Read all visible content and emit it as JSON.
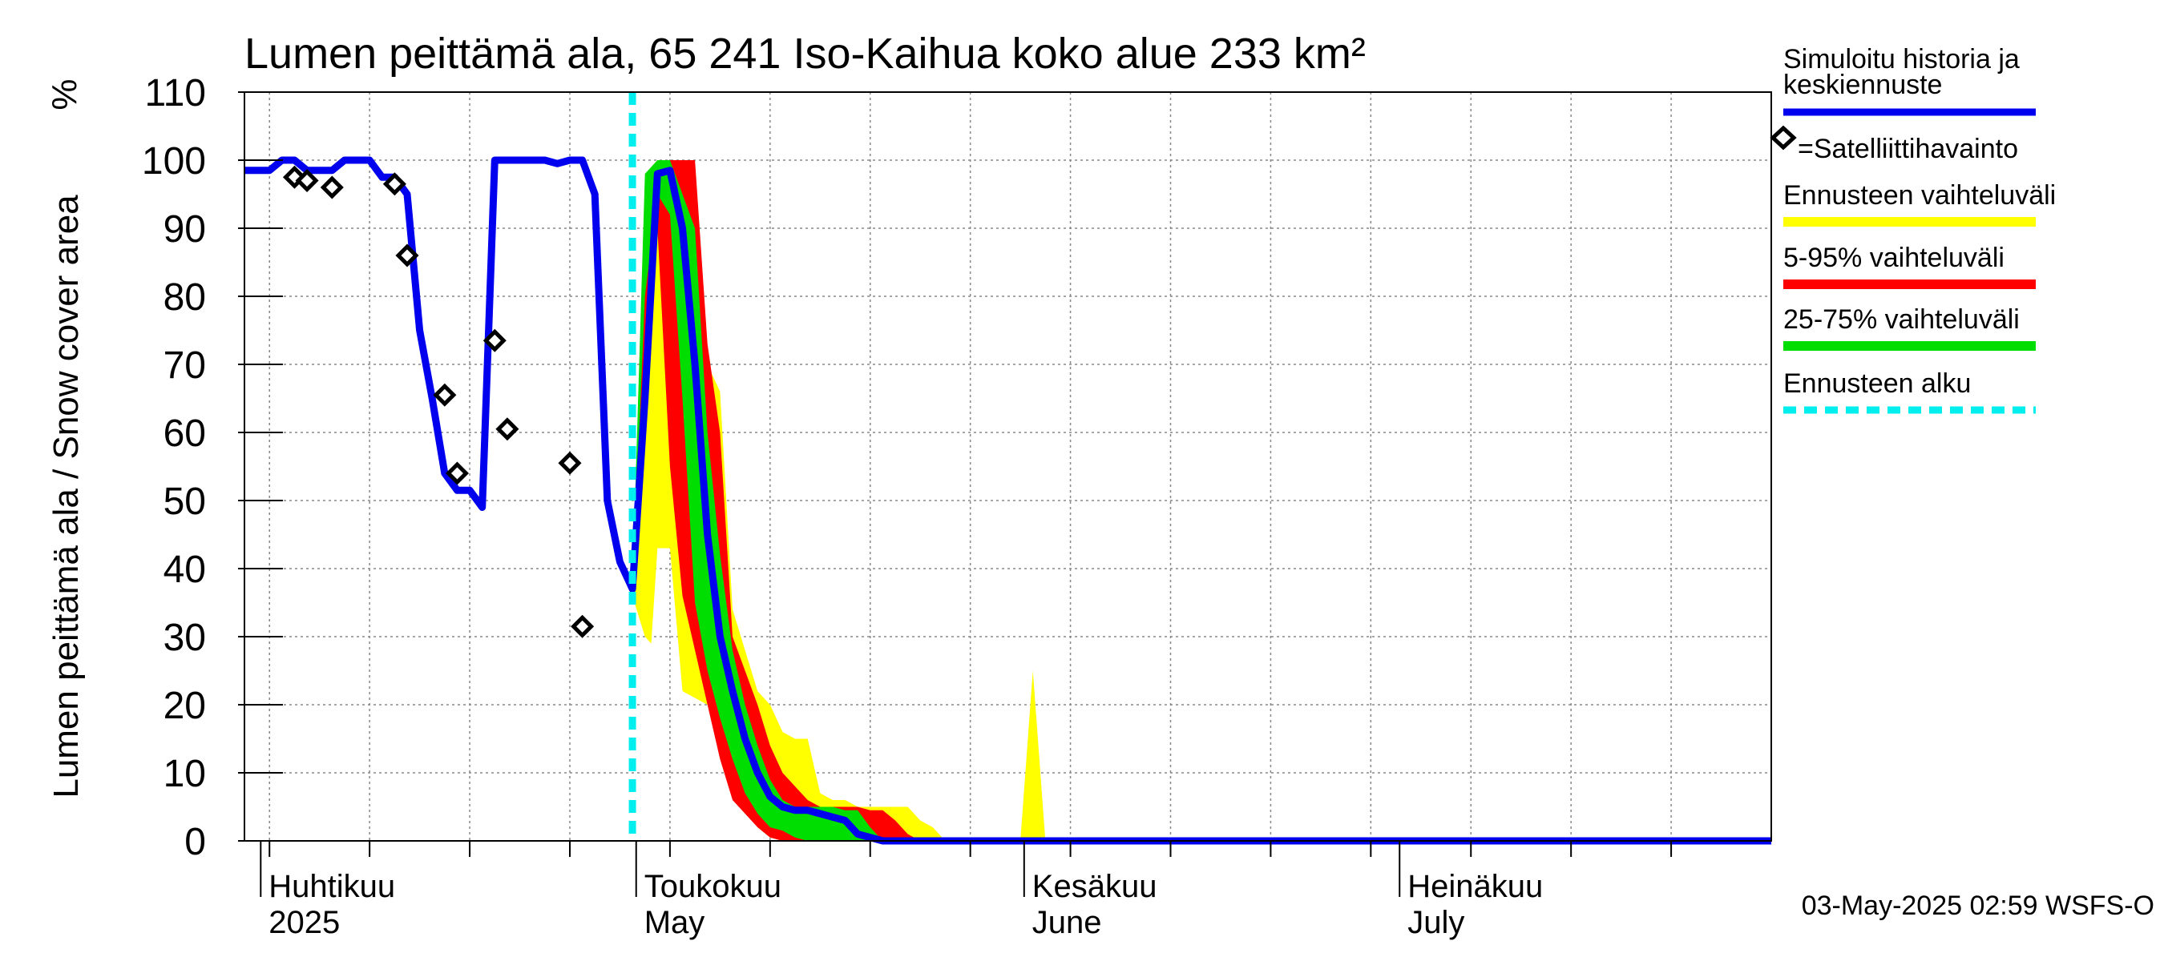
{
  "chart_data": {
    "type": "area",
    "title": "Lumen peittämä ala, 65 241 Iso-Kaihua koko alue 233 km²",
    "ylabel": "Lumen peittämä ala / Snow cover area",
    "yunit": "%",
    "ylim": [
      0,
      110
    ],
    "yticks": [
      0,
      10,
      20,
      30,
      40,
      50,
      60,
      70,
      80,
      90,
      100,
      110
    ],
    "x_unit": "day of year 2025",
    "xlim": [
      89,
      211
    ],
    "grid": true,
    "month_labels": [
      {
        "fi": "Huhtikuu",
        "en": "2025",
        "day": 91
      },
      {
        "fi": "Toukokuu",
        "en": "May",
        "day": 121
      },
      {
        "fi": "Kesäkuu",
        "en": "June",
        "day": 152
      },
      {
        "fi": "Heinäkuu",
        "en": "July",
        "day": 182
      }
    ],
    "forecast_start_day": 120,
    "legend": {
      "placement": "right",
      "entries": [
        {
          "label": "Simuloitu historia ja keskiennuste",
          "color": "#0000ee",
          "style": "line"
        },
        {
          "label": "=Satelliittihavainto",
          "color": "#000000",
          "style": "diamond"
        },
        {
          "label": "Ennusteen vaihteluväli",
          "color": "#ffff00",
          "style": "band"
        },
        {
          "label": "5-95% vaihteluväli",
          "color": "#ff0000",
          "style": "band"
        },
        {
          "label": "25-75% vaihteluväli",
          "color": "#00dd00",
          "style": "band"
        },
        {
          "label": "Ennusteen alku",
          "color": "#00eeee",
          "style": "dashed"
        }
      ]
    },
    "series": [
      {
        "name": "Simuloitu historia ja keskiennuste",
        "color": "#0000ee",
        "x": [
          89,
          91,
          92,
          93,
          94,
          96,
          97,
          98,
          99,
          100,
          101,
          102,
          103,
          104,
          105,
          106,
          107,
          108,
          109,
          110,
          111,
          112,
          113,
          114,
          115,
          116,
          117,
          118,
          119,
          120,
          121,
          122,
          123,
          124,
          125,
          126,
          127,
          128,
          129,
          130,
          131,
          132,
          133,
          134,
          135,
          136,
          137,
          138,
          140,
          211
        ],
        "y": [
          98.5,
          98.5,
          100,
          100,
          98.5,
          98.5,
          100,
          100,
          100,
          97.5,
          97.5,
          95,
          75,
          65,
          54,
          51.5,
          51.5,
          49,
          100,
          100,
          100,
          100,
          100,
          99.5,
          100,
          100,
          95,
          50,
          41,
          37,
          65,
          98,
          98.5,
          90,
          70,
          45,
          30,
          22,
          15,
          10,
          6.5,
          5,
          4.5,
          4.5,
          4,
          3.5,
          3,
          1,
          0,
          0
        ]
      },
      {
        "name": "Satelliittihavainto",
        "color": "#000000",
        "x": [
          93,
          94,
          96,
          101,
          102,
          105,
          106,
          109,
          110,
          115,
          116
        ],
        "y": [
          97.5,
          97,
          96,
          96.5,
          86,
          65.5,
          54,
          73.5,
          60.5,
          55.5,
          31.5
        ]
      },
      {
        "name": "Ennusteen vaihteluväli",
        "color": "#ffff00",
        "x": [
          120,
          121,
          121.5,
          122,
          123,
          124,
          125,
          126,
          127,
          128,
          129,
          130,
          131,
          132,
          133,
          134,
          135,
          136,
          137,
          138,
          139,
          140,
          141,
          142,
          143,
          144,
          145,
          146,
          150,
          151,
          152,
          153,
          154,
          155,
          211
        ],
        "upper": [
          40,
          90,
          99,
          100,
          100,
          100,
          95,
          70,
          66,
          34,
          28,
          22,
          20,
          16,
          15,
          15,
          7,
          6,
          6,
          5,
          5,
          5,
          5,
          5,
          3,
          2,
          0,
          0,
          0,
          0,
          25,
          0,
          0,
          0,
          0
        ],
        "lower": [
          36,
          30,
          29,
          43,
          43,
          22,
          21,
          20,
          15,
          11,
          6,
          2,
          0.5,
          0,
          0,
          0,
          0,
          0,
          0,
          0,
          0,
          0,
          0,
          0,
          0,
          0,
          0,
          0,
          0,
          0,
          0,
          0,
          0,
          0,
          0
        ]
      },
      {
        "name": "5-95% vaihteluväli",
        "color": "#ff0000",
        "x": [
          120,
          121,
          122,
          123,
          124,
          125,
          126,
          127,
          128,
          129,
          130,
          131,
          132,
          133,
          134,
          135,
          136,
          137,
          138,
          139,
          140,
          141,
          142,
          143
        ],
        "upper": [
          38,
          85,
          100,
          100,
          100,
          100,
          73,
          60,
          30,
          25,
          20,
          14,
          10,
          8,
          6,
          5,
          5,
          5,
          5,
          4.5,
          4.5,
          3,
          1,
          0
        ],
        "lower": [
          37,
          65,
          90,
          55,
          36,
          28,
          20,
          12,
          6,
          4,
          2,
          0.5,
          0,
          0,
          0,
          0,
          0,
          0,
          0,
          0,
          0,
          0,
          0,
          0
        ]
      },
      {
        "name": "25-75% vaihteluväli",
        "color": "#00dd00",
        "x": [
          120,
          121,
          122,
          123,
          124,
          125,
          126,
          127,
          128,
          129,
          130,
          131,
          132,
          133,
          134,
          135,
          136,
          137,
          138,
          139,
          140
        ],
        "upper": [
          37.5,
          98,
          100,
          100,
          95,
          90,
          60,
          42,
          28,
          20,
          14,
          9,
          6,
          5,
          5,
          5,
          5,
          4.5,
          4.5,
          2,
          0
        ],
        "lower": [
          37,
          80,
          95,
          92,
          65,
          35,
          25,
          18,
          12,
          7,
          4,
          2,
          1.5,
          0.5,
          0,
          0,
          0,
          0,
          0,
          0,
          0
        ]
      }
    ],
    "footer_timestamp": "03-May-2025 02:59 WSFS-O"
  }
}
